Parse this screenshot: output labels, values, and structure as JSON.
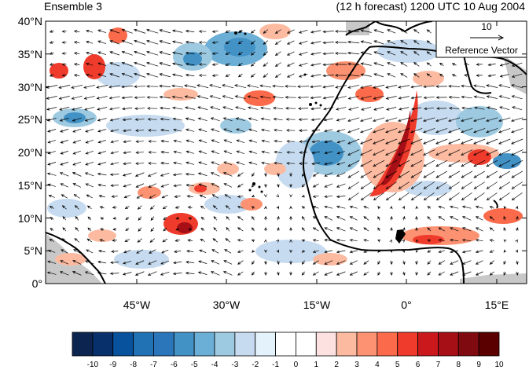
{
  "header": {
    "left": "Ensemble 3",
    "right": "(12 h forecast) 1200 UTC 10 Aug 2004"
  },
  "map": {
    "lat_labels": [
      "40°N",
      "35°N",
      "30°N",
      "25°N",
      "20°N",
      "15°N",
      "10°N",
      "5°N",
      "0°"
    ],
    "lon_labels": [
      "45°W",
      "30°W",
      "15°W",
      "0°",
      "15°E"
    ]
  },
  "reference": {
    "value": "10",
    "label": "Reference Vector"
  },
  "colorbar": {
    "labels": [
      "-10",
      "-9",
      "-8",
      "-7",
      "-6",
      "-5",
      "-4",
      "-3",
      "-2",
      "-1",
      "0",
      "1",
      "2",
      "3",
      "4",
      "5",
      "6",
      "7",
      "8",
      "9",
      "10"
    ],
    "colors": [
      "#0c2450",
      "#08306b",
      "#08519c",
      "#2171b5",
      "#2b76ba",
      "#4292c6",
      "#6baed6",
      "#9ecae1",
      "#c6dbef",
      "#e3f2fb",
      "#ffffff",
      "#ffffff",
      "#fde0e0",
      "#fcbba1",
      "#fc9272",
      "#fb6a4a",
      "#ef3b2c",
      "#cb181d",
      "#a50f15",
      "#7f0a10",
      "#5a0000"
    ]
  },
  "colors": {
    "land_gray": "#c8c8c8"
  }
}
